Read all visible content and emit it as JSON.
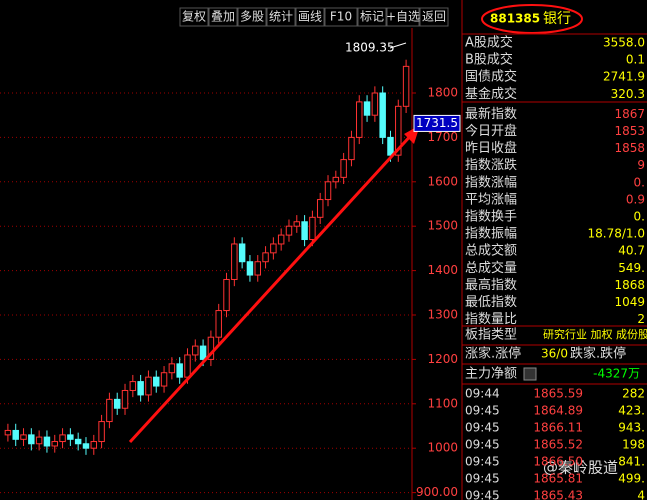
{
  "toolbar": {
    "buttons": [
      "复权",
      "叠加",
      "多股",
      "统计",
      "画线",
      "F10",
      "标记",
      "+自选",
      "返回"
    ]
  },
  "chart_data": {
    "type": "candlestick",
    "ylim": [
      880,
      2000
    ],
    "yticks": [
      {
        "value": 900,
        "label": "900.00"
      },
      1000,
      1100,
      1200,
      1300,
      1400,
      1500,
      1600,
      1700,
      1800
    ],
    "grid": true,
    "up_color": "#ff3232",
    "down_color": "#54fcfc",
    "open": [
      1030,
      1040,
      1020,
      1030,
      1010,
      1025,
      1005,
      1015,
      1030,
      1020,
      1010,
      1000,
      1015,
      1060,
      1110,
      1090,
      1130,
      1150,
      1120,
      1160,
      1140,
      1170,
      1190,
      1160,
      1210,
      1230,
      1200,
      1250,
      1310,
      1380,
      1460,
      1420,
      1390,
      1420,
      1440,
      1460,
      1480,
      1500,
      1510,
      1470,
      1520,
      1560,
      1600,
      1610,
      1650,
      1700,
      1780,
      1750,
      1800,
      1700,
      1660,
      1770
    ],
    "high": [
      1055,
      1055,
      1045,
      1045,
      1040,
      1040,
      1030,
      1045,
      1045,
      1035,
      1025,
      1030,
      1075,
      1125,
      1125,
      1145,
      1165,
      1165,
      1175,
      1175,
      1185,
      1205,
      1205,
      1225,
      1245,
      1245,
      1265,
      1325,
      1395,
      1475,
      1475,
      1435,
      1435,
      1455,
      1475,
      1495,
      1515,
      1525,
      1525,
      1535,
      1575,
      1615,
      1625,
      1665,
      1715,
      1795,
      1795,
      1815,
      1815,
      1715,
      1785,
      1875
    ],
    "low": [
      1015,
      1005,
      1005,
      995,
      995,
      990,
      990,
      1000,
      1005,
      995,
      985,
      985,
      1000,
      1045,
      1075,
      1075,
      1115,
      1105,
      1105,
      1125,
      1125,
      1155,
      1145,
      1145,
      1195,
      1185,
      1185,
      1235,
      1295,
      1365,
      1405,
      1375,
      1375,
      1405,
      1425,
      1445,
      1465,
      1485,
      1455,
      1455,
      1505,
      1545,
      1585,
      1595,
      1635,
      1685,
      1735,
      1735,
      1685,
      1645,
      1645,
      1755
    ],
    "close": [
      1040,
      1020,
      1030,
      1010,
      1025,
      1005,
      1015,
      1030,
      1020,
      1010,
      1000,
      1015,
      1060,
      1110,
      1090,
      1130,
      1150,
      1120,
      1160,
      1140,
      1170,
      1190,
      1160,
      1210,
      1230,
      1200,
      1250,
      1310,
      1380,
      1460,
      1420,
      1390,
      1420,
      1440,
      1460,
      1480,
      1500,
      1510,
      1470,
      1520,
      1560,
      1600,
      1610,
      1650,
      1700,
      1780,
      1750,
      1800,
      1700,
      1660,
      1770,
      1860
    ],
    "high_label": {
      "value": 1809.35,
      "label": "1809.35"
    },
    "cursor_label": {
      "value": 1731.5,
      "label": "1731.5"
    }
  },
  "panel": {
    "code": "881385",
    "name": "银行",
    "rows": [
      {
        "label": "A股成交",
        "value": "3558.0"
      },
      {
        "label": "B股成交",
        "value": "0.1"
      },
      {
        "label": "国债成交",
        "value": "2741.9"
      },
      {
        "label": "基金成交",
        "value": "320.3"
      },
      {
        "label": "最新指数",
        "value": "1867"
      },
      {
        "label": "今日开盘",
        "value": "1853"
      },
      {
        "label": "昨日收盘",
        "value": "1858"
      },
      {
        "label": "指数涨跌",
        "value": "9"
      },
      {
        "label": "指数涨幅",
        "value": "0."
      },
      {
        "label": "平均涨幅",
        "value": "0.9"
      },
      {
        "label": "指数换手",
        "value": "0."
      },
      {
        "label": "指数振幅",
        "value": "18.78/1.0"
      },
      {
        "label": "总成交额",
        "value": "40.7"
      },
      {
        "label": "总成交量",
        "value": "549."
      },
      {
        "label": "最高指数",
        "value": "1868"
      },
      {
        "label": "最低指数",
        "value": "1049"
      },
      {
        "label": "指数量比",
        "value": "2"
      }
    ],
    "type_label": "板指类型",
    "type_value": "研究行业 加权 成份股",
    "rise_label": "涨家.涨停",
    "rise_value": "36/0",
    "fall_label": "跌家.跌停",
    "flow_label": "主力净额",
    "flow_value": "-4327万",
    "ticks": [
      [
        "09:44",
        "1865.59",
        "282"
      ],
      [
        "09:45",
        "1864.89",
        "423."
      ],
      [
        "09:45",
        "1866.11",
        "943."
      ],
      [
        "09:45",
        "1865.52",
        "198"
      ],
      [
        "09:45",
        "1866.50",
        "841."
      ],
      [
        "09:45",
        "1865.81",
        "499."
      ],
      [
        "09:45",
        "1865.43",
        "4"
      ]
    ]
  },
  "watermark": "@秦岭股道"
}
